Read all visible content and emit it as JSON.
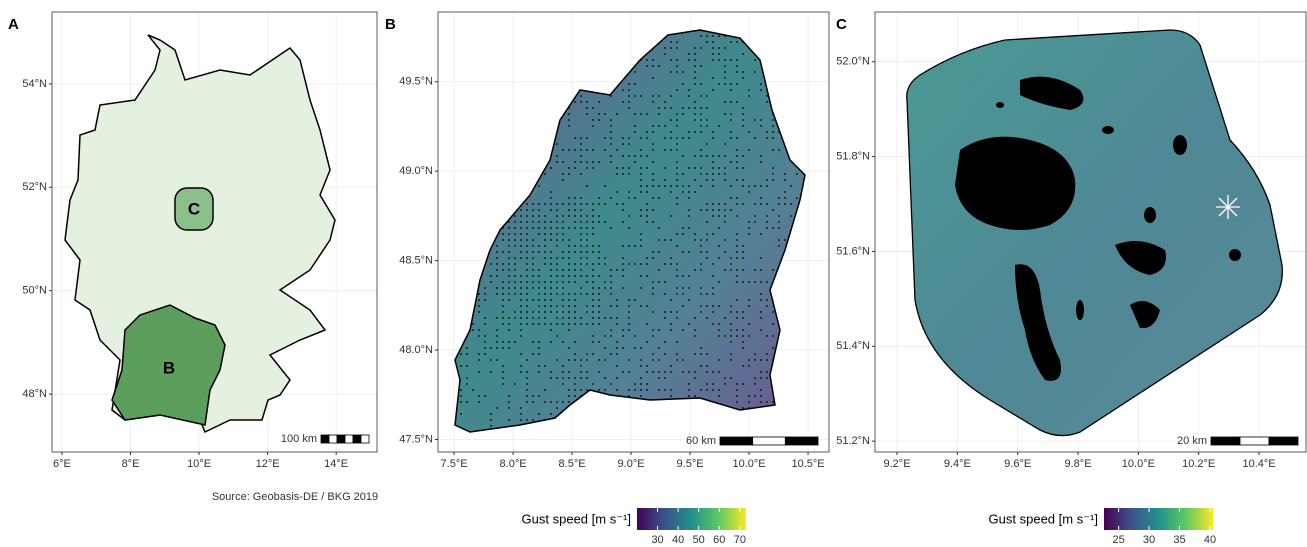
{
  "panels": [
    {
      "label": "A",
      "xlim": [
        5.71,
        15.22
      ],
      "ylim": [
        46.88,
        55.39
      ],
      "xticks": [
        {
          "value": 6,
          "label": "6°E"
        },
        {
          "value": 8,
          "label": "8°E"
        },
        {
          "value": 10,
          "label": "10°E"
        },
        {
          "value": 12,
          "label": "12°E"
        },
        {
          "value": 14,
          "label": "14°E"
        }
      ],
      "yticks": [
        {
          "value": 48,
          "label": "48°N"
        },
        {
          "value": 50,
          "label": "50°N"
        },
        {
          "value": 52,
          "label": "52°N"
        },
        {
          "value": 54,
          "label": "54°N"
        }
      ],
      "scale_bar": "100 km",
      "map_labels": [
        "B",
        "C"
      ],
      "source": "Source: Geobasis-DE / BKG 2019"
    },
    {
      "label": "B",
      "xlim": [
        7.364,
        10.686
      ],
      "ylim": [
        47.43,
        49.89
      ],
      "xticks": [
        {
          "value": 7.5,
          "label": "7.5°E"
        },
        {
          "value": 8.0,
          "label": "8.0°E"
        },
        {
          "value": 8.5,
          "label": "8.5°E"
        },
        {
          "value": 9.0,
          "label": "9.0°E"
        },
        {
          "value": 9.5,
          "label": "9.5°E"
        },
        {
          "value": 10.0,
          "label": "10.0°E"
        },
        {
          "value": 10.5,
          "label": "10.5°E"
        }
      ],
      "yticks": [
        {
          "value": 47.5,
          "label": "47.5°N"
        },
        {
          "value": 48.0,
          "label": "48.0°N"
        },
        {
          "value": 48.5,
          "label": "48.5°N"
        },
        {
          "value": 49.0,
          "label": "49.0°N"
        },
        {
          "value": 49.5,
          "label": "49.5°N"
        }
      ],
      "scale_bar": "60 km",
      "colorbar": {
        "title": "Gust speed [m s⁻¹]",
        "lim": [
          20,
          73
        ],
        "ticks": [
          30,
          40,
          50,
          60,
          70
        ]
      }
    },
    {
      "label": "C",
      "xlim": [
        9.127,
        10.559
      ],
      "ylim": [
        51.177,
        52.105
      ],
      "xticks": [
        {
          "value": 9.2,
          "label": "9.2°E"
        },
        {
          "value": 9.4,
          "label": "9.4°E"
        },
        {
          "value": 9.6,
          "label": "9.6°E"
        },
        {
          "value": 9.8,
          "label": "9.8°E"
        },
        {
          "value": 10.0,
          "label": "10.0°E"
        },
        {
          "value": 10.2,
          "label": "10.2°E"
        },
        {
          "value": 10.4,
          "label": "10.4°E"
        }
      ],
      "yticks": [
        {
          "value": 51.2,
          "label": "51.2°N"
        },
        {
          "value": 51.4,
          "label": "51.4°N"
        },
        {
          "value": 51.6,
          "label": "51.6°N"
        },
        {
          "value": 51.8,
          "label": "51.8°N"
        },
        {
          "value": 52.0,
          "label": "52.0°N"
        }
      ],
      "scale_bar": "20 km",
      "colorbar": {
        "title": "Gust speed [m s⁻¹]",
        "lim": [
          22.6,
          40.5
        ],
        "ticks": [
          25,
          30,
          35,
          40
        ]
      }
    }
  ]
}
